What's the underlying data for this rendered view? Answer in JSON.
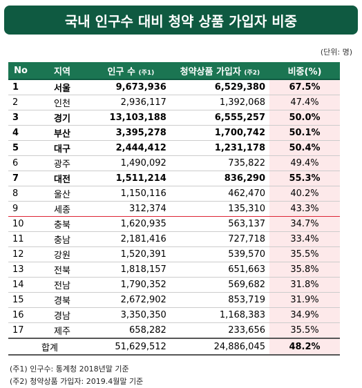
{
  "header": {
    "title": "국내 인구수 대비 청약 상품 가입자 비중",
    "unit": "(단위: 명)"
  },
  "table": {
    "columns": [
      {
        "text": "No"
      },
      {
        "text": "지역"
      },
      {
        "text": "인구 수",
        "note": "(주1)"
      },
      {
        "text": "청약상품 가입자",
        "note": "(주2)"
      },
      {
        "text": "비중(%)"
      }
    ],
    "rows": [
      {
        "cells": [
          "1",
          "서울",
          "9,673,936",
          "6,529,380",
          "67.5%"
        ],
        "bold": true
      },
      {
        "cells": [
          "2",
          "인천",
          "2,936,117",
          "1,392,068",
          "47.4%"
        ]
      },
      {
        "cells": [
          "3",
          "경기",
          "13,103,188",
          "6,555,257",
          "50.0%"
        ],
        "bold": true
      },
      {
        "cells": [
          "4",
          "부산",
          "3,395,278",
          "1,700,742",
          "50.1%"
        ],
        "bold": true
      },
      {
        "cells": [
          "5",
          "대구",
          "2,444,412",
          "1,231,178",
          "50.4%"
        ],
        "bold": true
      },
      {
        "cells": [
          "6",
          "광주",
          "1,490,092",
          "735,822",
          "49.4%"
        ]
      },
      {
        "cells": [
          "7",
          "대전",
          "1,511,214",
          "836,290",
          "55.3%"
        ],
        "bold": true
      },
      {
        "cells": [
          "8",
          "울산",
          "1,150,116",
          "462,470",
          "40.2%"
        ]
      },
      {
        "cells": [
          "9",
          "세종",
          "312,374",
          "135,310",
          "43.3%"
        ],
        "highlight": true
      },
      {
        "cells": [
          "10",
          "충북",
          "1,620,935",
          "563,137",
          "34.7%"
        ]
      },
      {
        "cells": [
          "11",
          "충남",
          "2,181,416",
          "727,718",
          "33.4%"
        ]
      },
      {
        "cells": [
          "12",
          "강원",
          "1,520,391",
          "539,570",
          "35.5%"
        ]
      },
      {
        "cells": [
          "13",
          "전북",
          "1,818,157",
          "651,663",
          "35.8%"
        ]
      },
      {
        "cells": [
          "14",
          "전남",
          "1,790,352",
          "569,682",
          "31.8%"
        ]
      },
      {
        "cells": [
          "15",
          "경북",
          "2,672,902",
          "853,719",
          "31.9%"
        ]
      },
      {
        "cells": [
          "16",
          "경남",
          "3,350,350",
          "1,168,383",
          "34.9%"
        ]
      },
      {
        "cells": [
          "17",
          "제주",
          "658,282",
          "233,656",
          "35.5%"
        ]
      }
    ],
    "total": [
      "합계",
      "51,629,512",
      "24,886,045",
      "48.2%"
    ]
  },
  "footnotes": [
    "(주1) 인구수: 통계청 2018년말 기준",
    "(주2) 청약상품 가입자: 2019.4월말 기준"
  ]
}
